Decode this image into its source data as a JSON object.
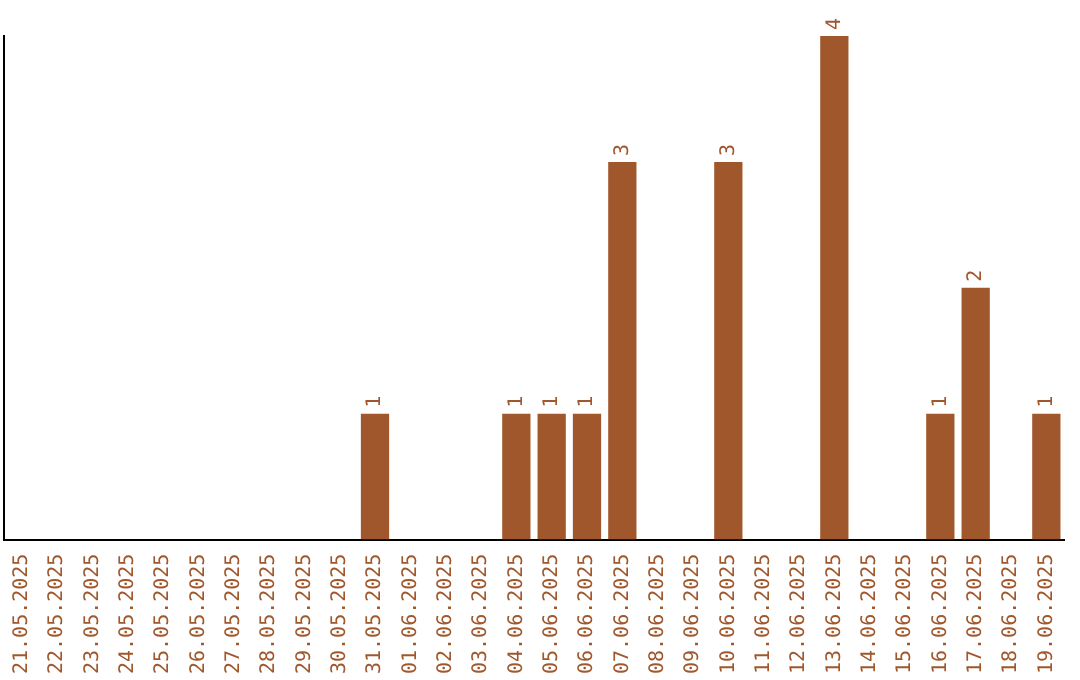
{
  "chart_data": {
    "type": "bar",
    "categories": [
      "21.05.2025",
      "22.05.2025",
      "23.05.2025",
      "24.05.2025",
      "25.05.2025",
      "26.05.2025",
      "27.05.2025",
      "28.05.2025",
      "29.05.2025",
      "30.05.2025",
      "31.05.2025",
      "01.06.2025",
      "02.06.2025",
      "03.06.2025",
      "04.06.2025",
      "05.06.2025",
      "06.06.2025",
      "07.06.2025",
      "08.06.2025",
      "09.06.2025",
      "10.06.2025",
      "11.06.2025",
      "12.06.2025",
      "13.06.2025",
      "14.06.2025",
      "15.06.2025",
      "16.06.2025",
      "17.06.2025",
      "18.06.2025",
      "19.06.2025"
    ],
    "values": [
      0,
      0,
      0,
      0,
      0,
      0,
      0,
      0,
      0,
      0,
      1,
      0,
      0,
      0,
      1,
      1,
      1,
      3,
      0,
      0,
      3,
      0,
      0,
      4,
      0,
      0,
      1,
      2,
      0,
      1
    ],
    "color": "#a0572c",
    "ylim": [
      0,
      4
    ],
    "value_labels": [
      null,
      null,
      null,
      null,
      null,
      null,
      null,
      null,
      null,
      null,
      "1",
      null,
      null,
      null,
      "1",
      "1",
      "1",
      "3",
      null,
      null,
      "3",
      null,
      null,
      "4",
      null,
      null,
      "1",
      "2",
      null,
      "1"
    ],
    "tick_labels": "x",
    "grid": false,
    "legend": false
  }
}
